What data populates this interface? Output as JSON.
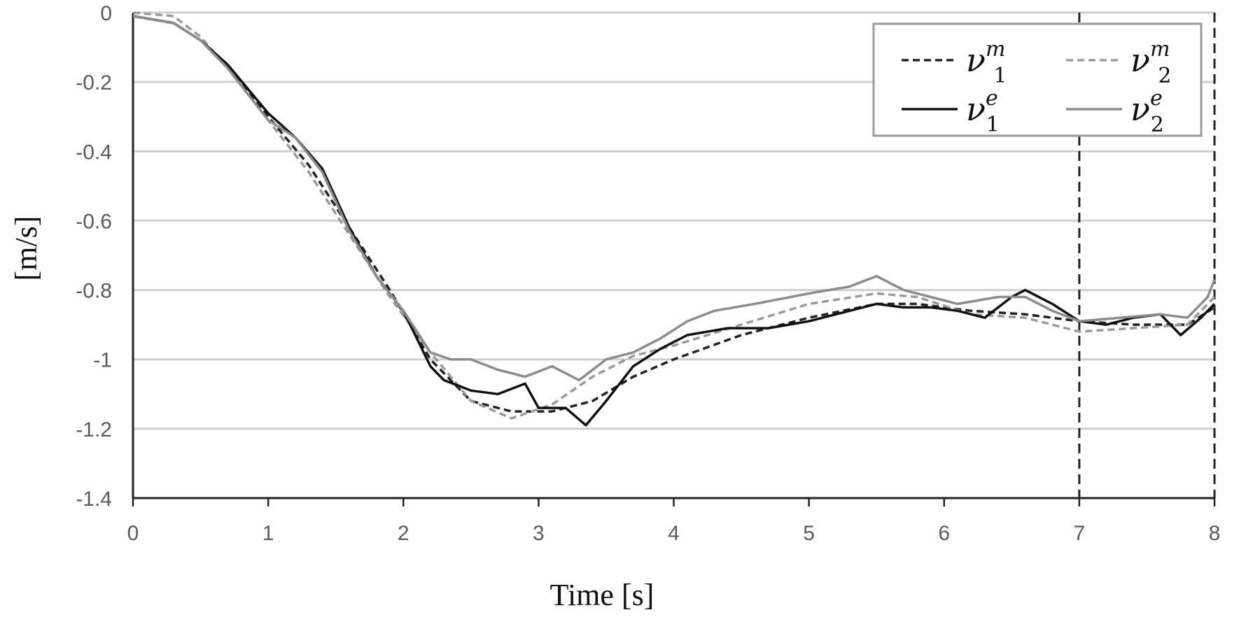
{
  "chart_data": {
    "type": "line",
    "xlabel": "Time [s]",
    "ylabel": "[m/s]",
    "xlim": [
      0,
      8
    ],
    "ylim": [
      -1.4,
      0
    ],
    "xticks": [
      "0",
      "1",
      "2",
      "3",
      "4",
      "5",
      "6",
      "7",
      "8"
    ],
    "yticks": [
      "0",
      "-0.2",
      "-0.4",
      "-0.6",
      "-0.8",
      "-1",
      "-1.2",
      "-1.4"
    ],
    "grid": "horizontal",
    "legend": "top-right",
    "vertical_markers": [
      7,
      8
    ],
    "series": [
      {
        "base": "ν",
        "sub": "1",
        "sup": "m",
        "color": "#222222",
        "style": "dashed",
        "x": [
          0,
          0.3,
          0.5,
          0.7,
          1.0,
          1.3,
          1.6,
          1.9,
          2.2,
          2.5,
          2.8,
          3.1,
          3.4,
          3.7,
          4.0,
          4.5,
          5.0,
          5.5,
          5.8,
          6.2,
          6.6,
          7.0,
          7.4,
          7.8,
          8.0
        ],
        "y": [
          -0.01,
          -0.03,
          -0.08,
          -0.16,
          -0.3,
          -0.44,
          -0.62,
          -0.8,
          -1.0,
          -1.12,
          -1.15,
          -1.15,
          -1.12,
          -1.05,
          -1.0,
          -0.93,
          -0.88,
          -0.84,
          -0.84,
          -0.86,
          -0.87,
          -0.89,
          -0.9,
          -0.9,
          -0.85
        ]
      },
      {
        "base": "ν",
        "sub": "2",
        "sup": "m",
        "color": "#9a9a9a",
        "style": "dashed",
        "x": [
          0,
          0.3,
          0.5,
          0.7,
          1.0,
          1.3,
          1.6,
          1.9,
          2.2,
          2.5,
          2.8,
          3.1,
          3.4,
          3.7,
          4.0,
          4.5,
          5.0,
          5.5,
          5.8,
          6.2,
          6.6,
          7.0,
          7.4,
          7.8,
          8.0
        ],
        "y": [
          0.0,
          -0.01,
          -0.07,
          -0.16,
          -0.31,
          -0.46,
          -0.64,
          -0.82,
          -0.98,
          -1.12,
          -1.17,
          -1.13,
          -1.05,
          -0.99,
          -0.96,
          -0.9,
          -0.84,
          -0.81,
          -0.82,
          -0.87,
          -0.88,
          -0.92,
          -0.91,
          -0.9,
          -0.82
        ]
      },
      {
        "base": "ν",
        "sub": "1",
        "sup": "e",
        "color": "#111111",
        "style": "solid",
        "x": [
          0,
          0.3,
          0.5,
          0.7,
          1.0,
          1.2,
          1.4,
          1.6,
          1.8,
          2.0,
          2.2,
          2.3,
          2.5,
          2.7,
          2.9,
          3.0,
          3.2,
          3.35,
          3.5,
          3.7,
          3.9,
          4.1,
          4.4,
          4.7,
          5.0,
          5.3,
          5.5,
          5.7,
          5.9,
          6.1,
          6.3,
          6.5,
          6.6,
          6.8,
          7.0,
          7.2,
          7.4,
          7.6,
          7.75,
          7.9,
          8.0
        ],
        "y": [
          -0.01,
          -0.03,
          -0.08,
          -0.15,
          -0.29,
          -0.36,
          -0.45,
          -0.62,
          -0.76,
          -0.86,
          -1.02,
          -1.06,
          -1.09,
          -1.1,
          -1.07,
          -1.14,
          -1.14,
          -1.19,
          -1.12,
          -1.02,
          -0.97,
          -0.93,
          -0.91,
          -0.91,
          -0.89,
          -0.86,
          -0.84,
          -0.85,
          -0.85,
          -0.86,
          -0.88,
          -0.82,
          -0.8,
          -0.84,
          -0.89,
          -0.9,
          -0.88,
          -0.87,
          -0.93,
          -0.88,
          -0.84
        ]
      },
      {
        "base": "ν",
        "sub": "2",
        "sup": "e",
        "color": "#8c8c8c",
        "style": "solid",
        "x": [
          0,
          0.3,
          0.5,
          0.7,
          1.0,
          1.2,
          1.4,
          1.6,
          1.8,
          2.0,
          2.2,
          2.35,
          2.5,
          2.7,
          2.9,
          3.1,
          3.3,
          3.5,
          3.7,
          3.9,
          4.1,
          4.3,
          4.6,
          5.0,
          5.3,
          5.5,
          5.7,
          5.9,
          6.1,
          6.4,
          6.6,
          6.8,
          7.0,
          7.3,
          7.6,
          7.8,
          7.95,
          8.0
        ],
        "y": [
          -0.01,
          -0.03,
          -0.08,
          -0.16,
          -0.31,
          -0.36,
          -0.46,
          -0.63,
          -0.76,
          -0.86,
          -0.98,
          -1.0,
          -1.0,
          -1.03,
          -1.05,
          -1.02,
          -1.06,
          -1.0,
          -0.98,
          -0.94,
          -0.89,
          -0.86,
          -0.84,
          -0.81,
          -0.79,
          -0.76,
          -0.8,
          -0.82,
          -0.84,
          -0.82,
          -0.82,
          -0.86,
          -0.89,
          -0.88,
          -0.87,
          -0.88,
          -0.82,
          -0.77
        ]
      }
    ]
  }
}
